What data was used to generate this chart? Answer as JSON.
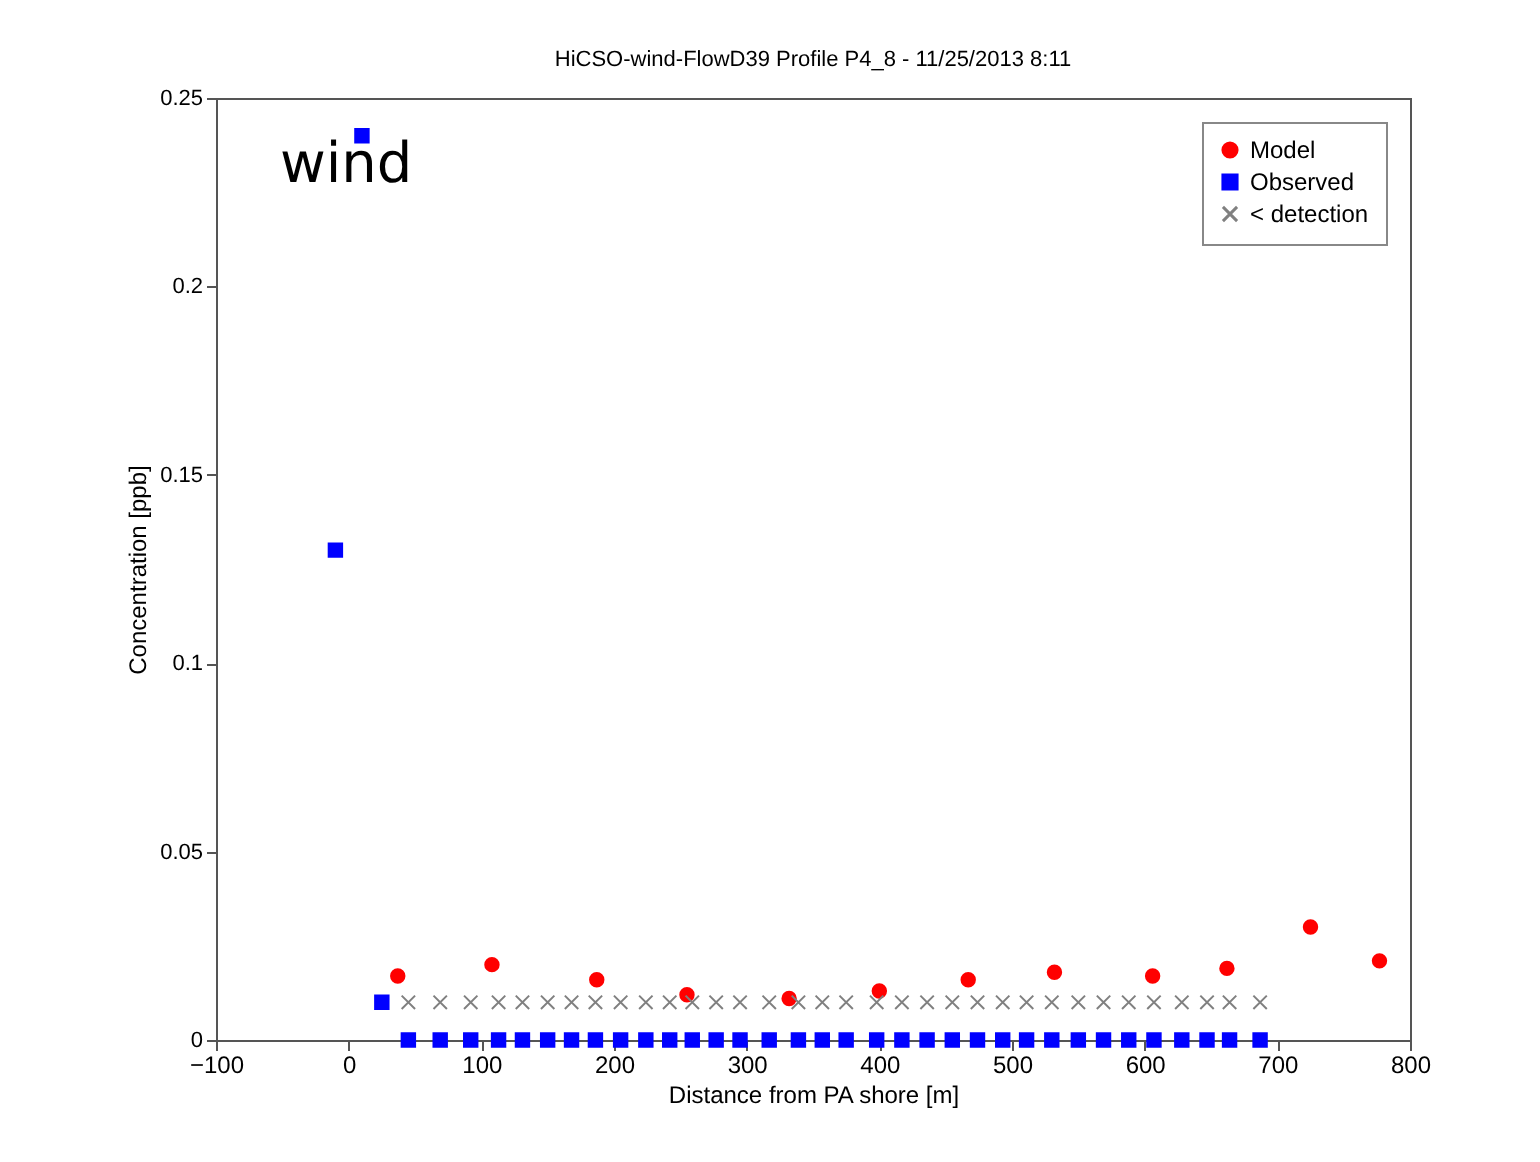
{
  "chart_data": {
    "type": "scatter",
    "title": "HiCSO-wind-FlowD39 Profile P4_8 - 11/25/2013 8:11",
    "xlabel": "Distance from PA shore [m]",
    "ylabel": "Concentration [ppb]",
    "annotations": [
      "wind"
    ],
    "xlim": [
      -100,
      800
    ],
    "xticks": [
      -100,
      0,
      100,
      200,
      300,
      400,
      500,
      600,
      700,
      800
    ],
    "ylim": [
      0,
      0.25
    ],
    "yticks": [
      0,
      0.05,
      0.1,
      0.15,
      0.2,
      0.25
    ],
    "grid": false,
    "legend": "top right",
    "series": [
      {
        "name": "Model",
        "color": "#ff0000",
        "marker": "circle",
        "x": [
          37,
          108,
          187,
          255,
          332,
          400,
          467,
          532,
          606,
          662,
          725,
          777
        ],
        "values": [
          0.017,
          0.02,
          0.016,
          0.012,
          0.011,
          0.013,
          0.016,
          0.018,
          0.017,
          0.019,
          0.03,
          0.021
        ]
      },
      {
        "name": "Observed",
        "color": "#0000ff",
        "marker": "square",
        "x": [
          -10,
          10,
          25,
          45,
          69,
          92,
          113,
          131,
          150,
          168,
          186,
          205,
          224,
          242,
          259,
          277,
          295,
          317,
          339,
          357,
          375,
          398,
          417,
          436,
          455,
          474,
          493,
          511,
          530,
          550,
          569,
          588,
          607,
          628,
          647,
          664,
          687
        ],
        "values": [
          0.13,
          0.24,
          0.01,
          0,
          0,
          0,
          0,
          0,
          0,
          0,
          0,
          0,
          0,
          0,
          0,
          0,
          0,
          0,
          0,
          0,
          0,
          0,
          0,
          0,
          0,
          0,
          0,
          0,
          0,
          0,
          0,
          0,
          0,
          0,
          0,
          0,
          0
        ]
      },
      {
        "name": "< detection",
        "color": "#808080",
        "marker": "cross",
        "x": [
          45,
          69,
          92,
          113,
          131,
          150,
          168,
          186,
          205,
          224,
          242,
          259,
          277,
          295,
          317,
          339,
          357,
          375,
          398,
          417,
          436,
          455,
          474,
          493,
          511,
          530,
          550,
          569,
          588,
          607,
          628,
          647,
          664,
          687
        ],
        "values": [
          0.01,
          0.01,
          0.01,
          0.01,
          0.01,
          0.01,
          0.01,
          0.01,
          0.01,
          0.01,
          0.01,
          0.01,
          0.01,
          0.01,
          0.01,
          0.01,
          0.01,
          0.01,
          0.01,
          0.01,
          0.01,
          0.01,
          0.01,
          0.01,
          0.01,
          0.01,
          0.01,
          0.01,
          0.01,
          0.01,
          0.01,
          0.01,
          0.01,
          0.01
        ]
      }
    ]
  }
}
